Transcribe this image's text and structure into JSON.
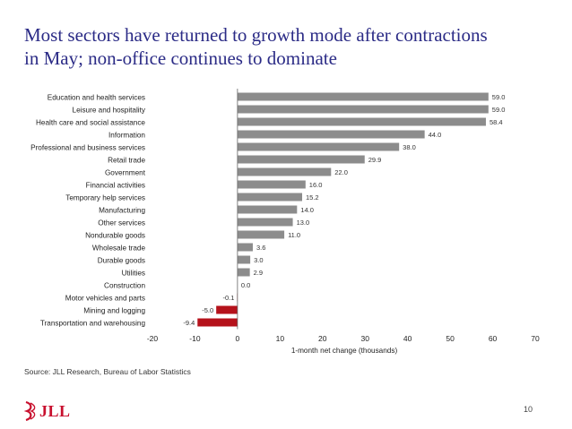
{
  "slide": {
    "title_line1": "Most sectors have returned to growth mode after contractions",
    "title_line2": "in May; non-office continues to dominate",
    "source": "Source: JLL Research, Bureau of Labor Statistics",
    "logo_text": "JLL",
    "page_number": "10"
  },
  "colors": {
    "title": "#2b2b86",
    "positive_bar": "#8c8c8c",
    "negative_bar": "#b5121b",
    "logo": "#c8102e"
  },
  "chart_data": {
    "type": "bar",
    "orientation": "horizontal",
    "title": "",
    "xlabel": "1-month net change (thousands)",
    "ylabel": "",
    "xlim": [
      -20,
      70
    ],
    "xticks": [
      -20,
      -10,
      0,
      10,
      20,
      30,
      40,
      50,
      60,
      70
    ],
    "grid": false,
    "categories": [
      "Education and health services",
      "Leisure and hospitality",
      "Health care and social assistance",
      "Information",
      "Professional and business services",
      "Retail trade",
      "Government",
      "Financial activities",
      "Temporary help services",
      "Manufacturing",
      "Other services",
      "Nondurable goods",
      "Wholesale trade",
      "Durable goods",
      "Utilities",
      "Construction",
      "Motor vehicles and parts",
      "Mining and logging",
      "Transportation and warehousing"
    ],
    "values": [
      59.0,
      59.0,
      58.4,
      44.0,
      38.0,
      29.9,
      22.0,
      16.0,
      15.2,
      14.0,
      13.0,
      11.0,
      3.6,
      3.0,
      2.9,
      0.0,
      -0.1,
      -5.0,
      -9.4
    ],
    "value_labels": [
      "59.0",
      "59.0",
      "58.4",
      "44.0",
      "38.0",
      "29.9",
      "22.0",
      "16.0",
      "15.2",
      "14.0",
      "13.0",
      "11.0",
      "3.6",
      "3.0",
      "2.9",
      "0.0",
      "-0.1",
      "-5.0",
      "-9.4"
    ]
  }
}
